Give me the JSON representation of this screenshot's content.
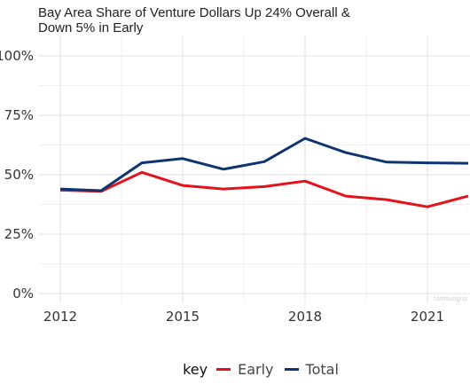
{
  "chart_data": {
    "type": "line",
    "title_lines": [
      "Bay Area Share of Venture Dollars Up 24% Overall &",
      "Down 5% in Early"
    ],
    "xlabel": "",
    "ylabel": "",
    "x": [
      2012,
      2013,
      2014,
      2015,
      2016,
      2017,
      2018,
      2019,
      2020,
      2021,
      2022
    ],
    "x_ticks": [
      2012,
      2015,
      2018,
      2021
    ],
    "x_tick_labels": [
      "2012",
      "2015",
      "2018",
      "2021"
    ],
    "xlim": [
      2011.7,
      2022.2
    ],
    "y_ticks": [
      0,
      25,
      50,
      75,
      100
    ],
    "y_tick_labels": [
      "0%",
      "25%",
      "50%",
      "75%",
      "100%"
    ],
    "ylim": [
      0,
      100
    ],
    "grid": true,
    "legend_position": "bottom",
    "legend_title": "key",
    "series": [
      {
        "name": "Early",
        "color": "#e3121b",
        "values": [
          43.5,
          43,
          51,
          45.5,
          44,
          45,
          47.3,
          41,
          39.5,
          36.5,
          41
        ]
      },
      {
        "name": "Total",
        "color": "#0f3571",
        "values": [
          44,
          43.3,
          55,
          56.8,
          52.3,
          55.5,
          65.3,
          59.3,
          55.3,
          55,
          54.8
        ]
      }
    ],
    "watermark": "tomtunguz"
  }
}
